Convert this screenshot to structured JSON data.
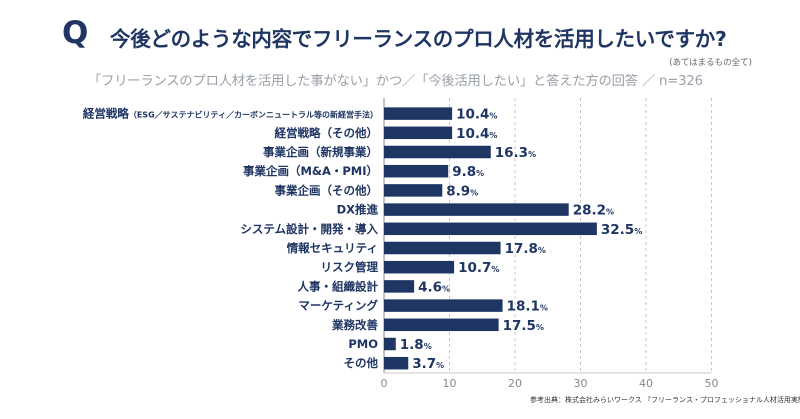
{
  "header": {
    "q_mark": "Q",
    "title": "今後どのような内容でフリーランスのプロ人材を活用したいですか?",
    "note": "(あてはまるもの全て)",
    "subtitle": "「フリーランスのプロ人材を活用した事がない」かつ／「今後活用したい」と答えた方の回答 ／ n=326"
  },
  "source": "参考出典：株式会社みらいワークス 『フリーランス・プロフェッショナル人材活用実態調査』",
  "colors": {
    "bar": "#1f3563",
    "grid": "#c8c8c8",
    "tick": "#888888"
  },
  "chart_data": {
    "type": "bar",
    "orientation": "horizontal",
    "categories": [
      "経営戦略",
      "経営戦略（その他）",
      "事業企画（新規事業）",
      "事業企画（M&A・PMI）",
      "事業企画（その他）",
      "DX推進",
      "システム設計・開発・導入",
      "情報セキュリティ",
      "リスク管理",
      "人事・組織設計",
      "マーケティング",
      "業務改善",
      "PMO",
      "その他"
    ],
    "category_suffix": [
      "（ESG／サステナビリティ／カーボンニュートラル等の新経営手法）",
      "",
      "",
      "",
      "",
      "",
      "",
      "",
      "",
      "",
      "",
      "",
      "",
      ""
    ],
    "values": [
      10.4,
      10.4,
      16.3,
      9.8,
      8.9,
      28.2,
      32.5,
      17.8,
      10.7,
      4.6,
      18.1,
      17.5,
      1.8,
      3.7
    ],
    "value_labels": [
      "10.4",
      "10.4",
      "16.3",
      "9.8",
      "8.9",
      "28.2",
      "32.5",
      "17.8",
      "10.7",
      "4.6",
      "18.1",
      "17.5",
      "1.8",
      "3.7"
    ],
    "unit": "%",
    "xlim": [
      0,
      50
    ],
    "xticks": [
      "0",
      "10",
      "20",
      "30",
      "40",
      "50"
    ],
    "grid": true
  }
}
